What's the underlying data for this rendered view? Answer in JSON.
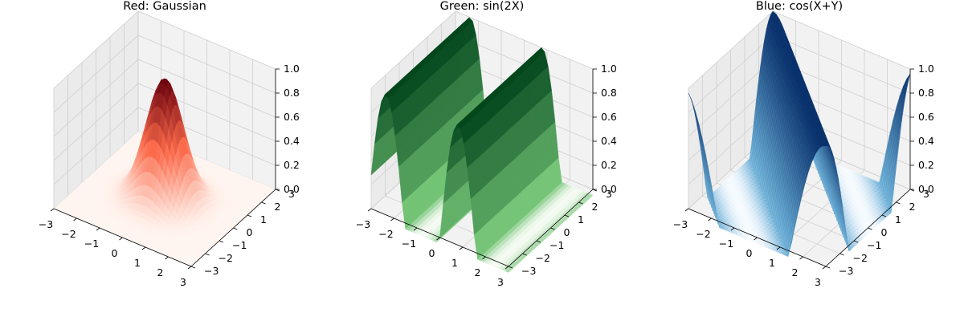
{
  "chart_data": [
    {
      "type": "surface3d",
      "title": "Red: Gaussian",
      "function": "exp(-(x^2+y^2))",
      "colormap": "Reds",
      "xlim": [
        -3,
        3
      ],
      "ylim": [
        -3,
        3
      ],
      "zlim": [
        0,
        1
      ],
      "x_ticks": [
        "−3",
        "−2",
        "−1",
        "0",
        "1",
        "2",
        "3"
      ],
      "y_ticks": [
        "−3",
        "−2",
        "−1",
        "0",
        "1",
        "2",
        "3"
      ],
      "z_ticks": [
        "0.0",
        "0.2",
        "0.4",
        "0.6",
        "0.8",
        "1.0"
      ],
      "grid": true
    },
    {
      "type": "surface3d",
      "title": "Green: sin(2X)",
      "function": "sin(2x)",
      "colormap": "Greens",
      "xlim": [
        -3,
        3
      ],
      "ylim": [
        -3,
        3
      ],
      "zlim": [
        0,
        1
      ],
      "x_ticks": [
        "−3",
        "−2",
        "−1",
        "0",
        "1",
        "2",
        "3"
      ],
      "y_ticks": [
        "−3",
        "−2",
        "−1",
        "0",
        "1",
        "2",
        "3"
      ],
      "z_ticks": [
        "0.0",
        "0.2",
        "0.4",
        "0.6",
        "0.8",
        "1.0"
      ],
      "grid": true
    },
    {
      "type": "surface3d",
      "title": "Blue: cos(X+Y)",
      "function": "cos(x+y)",
      "colormap": "Blues",
      "xlim": [
        -3,
        3
      ],
      "ylim": [
        -3,
        3
      ],
      "zlim": [
        0,
        1
      ],
      "x_ticks": [
        "−3",
        "−2",
        "−1",
        "0",
        "1",
        "2",
        "3"
      ],
      "y_ticks": [
        "−3",
        "−2",
        "−1",
        "0",
        "1",
        "2",
        "3"
      ],
      "z_ticks": [
        "0.0",
        "0.2",
        "0.4",
        "0.6",
        "0.8",
        "1.0"
      ],
      "grid": true
    }
  ],
  "colors": {
    "pane": "#f2f2f2",
    "pane_side": "#ebebeb",
    "grid": "#cfcfcf",
    "axis_line": "#000000",
    "reds_low": "#fff5f0",
    "reds_mid": "#fb6a4a",
    "reds_high": "#67000d",
    "greens_low": "#f7fcf5",
    "greens_mid": "#74c476",
    "greens_high": "#00441b",
    "blues_low": "#f7fbff",
    "blues_mid": "#6baed6",
    "blues_high": "#08306b"
  }
}
